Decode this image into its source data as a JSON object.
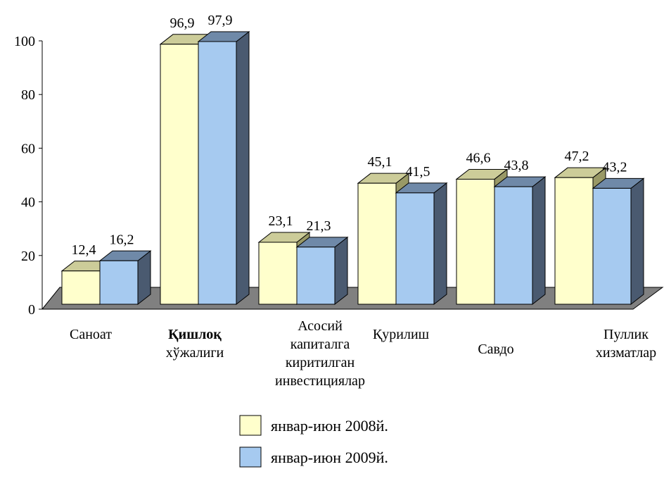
{
  "chart_data": {
    "type": "bar",
    "categories": [
      [
        "Саноат"
      ],
      [
        "Қишлоқ",
        "хўжалиги"
      ],
      [
        "Асосий",
        "капиталга",
        "киритилган",
        "инвестициялар"
      ],
      [
        "Қурилиш"
      ],
      [
        "Савдо"
      ],
      [
        "Пуллик",
        "хизматлар"
      ]
    ],
    "series": [
      {
        "name": "январ-июн 2008й.",
        "values": [
          12.4,
          96.9,
          23.1,
          45.1,
          46.6,
          47.2
        ],
        "value_labels": [
          "12,4",
          "96,9",
          "23,1",
          "45,1",
          "46,6",
          "47,2"
        ],
        "front_color": "#ffffcc",
        "top_color": "#cccc99",
        "side_color": "#999966"
      },
      {
        "name": "январ-июн 2009й.",
        "values": [
          16.2,
          97.9,
          21.3,
          41.5,
          43.8,
          43.2
        ],
        "value_labels": [
          "16,2",
          "97,9",
          "21,3",
          "41,5",
          "43,8",
          "43,2"
        ],
        "front_color": "#a6caf0",
        "top_color": "#6f89a8",
        "side_color": "#4a5a70"
      }
    ],
    "y_ticks": [
      "0",
      "20",
      "40",
      "60",
      "80",
      "100"
    ],
    "ylim": [
      0,
      100
    ],
    "grid": false,
    "legend_position": "bottom",
    "floor_color": "#808080",
    "title": "",
    "xlabel": "",
    "ylabel": ""
  }
}
